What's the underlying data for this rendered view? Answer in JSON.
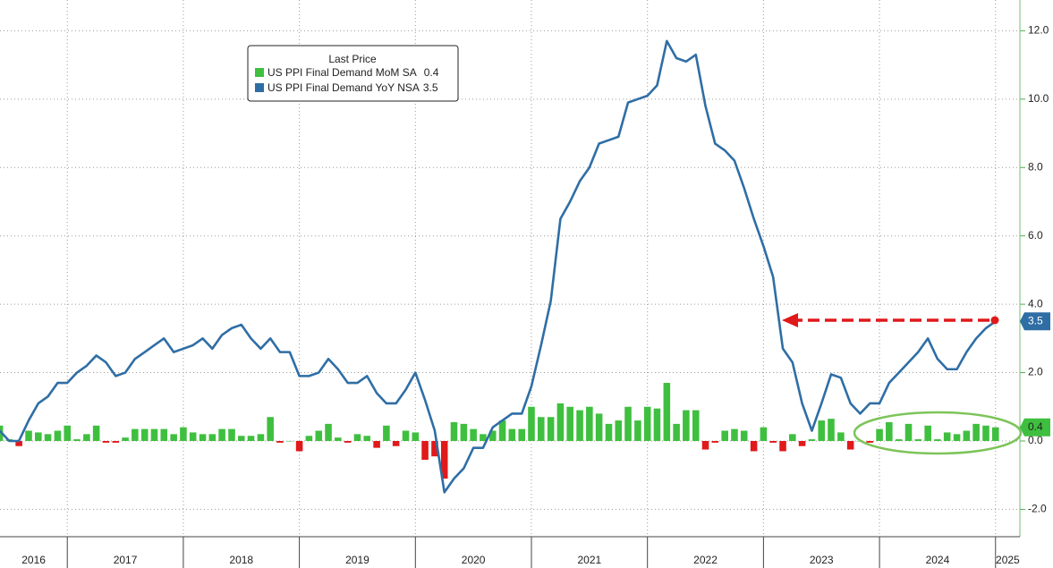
{
  "chart_data": {
    "type": "bar_line",
    "legend_title": "Last Price",
    "x": [
      2016.417,
      2016.5,
      2016.583,
      2016.667,
      2016.75,
      2016.833,
      2016.917,
      2017,
      2017.083,
      2017.167,
      2017.25,
      2017.333,
      2017.417,
      2017.5,
      2017.583,
      2017.667,
      2017.75,
      2017.833,
      2017.917,
      2018,
      2018.083,
      2018.167,
      2018.25,
      2018.333,
      2018.417,
      2018.5,
      2018.583,
      2018.667,
      2018.75,
      2018.833,
      2018.917,
      2019,
      2019.083,
      2019.167,
      2019.25,
      2019.333,
      2019.417,
      2019.5,
      2019.583,
      2019.667,
      2019.75,
      2019.833,
      2019.917,
      2020,
      2020.083,
      2020.167,
      2020.25,
      2020.333,
      2020.417,
      2020.5,
      2020.583,
      2020.667,
      2020.75,
      2020.833,
      2020.917,
      2021,
      2021.083,
      2021.167,
      2021.25,
      2021.333,
      2021.417,
      2021.5,
      2021.583,
      2021.667,
      2021.75,
      2021.833,
      2021.917,
      2022,
      2022.083,
      2022.167,
      2022.25,
      2022.333,
      2022.417,
      2022.5,
      2022.583,
      2022.667,
      2022.75,
      2022.833,
      2022.917,
      2023,
      2023.083,
      2023.167,
      2023.25,
      2023.333,
      2023.417,
      2023.5,
      2023.583,
      2023.667,
      2023.75,
      2023.833,
      2023.917,
      2024,
      2024.083,
      2024.167,
      2024.25,
      2024.333,
      2024.417,
      2024.5,
      2024.583,
      2024.667,
      2024.75,
      2024.833,
      2024.917,
      2025
    ],
    "series": [
      {
        "name": "US PPI Final Demand MoM SA",
        "kind": "bar",
        "color": "#3fbf3f",
        "negative_color": "#e0191b",
        "values": [
          0.45,
          0.05,
          -0.15,
          0.3,
          0.25,
          0.2,
          0.3,
          0.45,
          0.05,
          0.2,
          0.45,
          -0.05,
          -0.05,
          0.1,
          0.35,
          0.35,
          0.35,
          0.35,
          0.2,
          0.4,
          0.25,
          0.2,
          0.2,
          0.35,
          0.35,
          0.15,
          0.15,
          0.2,
          0.7,
          -0.05,
          0.0,
          -0.3,
          0.15,
          0.3,
          0.5,
          0.1,
          -0.05,
          0.2,
          0.15,
          -0.2,
          0.45,
          -0.15,
          0.3,
          0.25,
          -0.55,
          -0.45,
          -1.1,
          0.55,
          0.5,
          0.35,
          0.2,
          0.3,
          0.6,
          0.35,
          0.35,
          1.0,
          0.7,
          0.7,
          1.1,
          1.0,
          0.9,
          1.0,
          0.8,
          0.5,
          0.6,
          1.0,
          0.6,
          1.0,
          0.95,
          1.7,
          0.5,
          0.9,
          0.9,
          -0.25,
          -0.05,
          0.3,
          0.35,
          0.3,
          -0.3,
          0.4,
          -0.05,
          -0.3,
          0.2,
          -0.15,
          0.05,
          0.6,
          0.65,
          0.25,
          -0.25,
          0.0,
          -0.05,
          0.35,
          0.55,
          0.05,
          0.5,
          0.05,
          0.45,
          0.05,
          0.25,
          0.2,
          0.3,
          0.5,
          0.45,
          0.4
        ]
      },
      {
        "name": "US PPI Final Demand YoY NSA",
        "kind": "line",
        "color": "#2f6ea5",
        "values": [
          0.3,
          0.0,
          0.0,
          0.6,
          1.1,
          1.3,
          1.7,
          1.7,
          2.0,
          2.2,
          2.5,
          2.3,
          1.9,
          2.0,
          2.4,
          2.6,
          2.8,
          3.0,
          2.6,
          2.7,
          2.8,
          3.0,
          2.7,
          3.1,
          3.3,
          3.4,
          3.0,
          2.7,
          3.0,
          2.6,
          2.6,
          1.9,
          1.9,
          2.0,
          2.4,
          2.1,
          1.7,
          1.7,
          1.9,
          1.4,
          1.1,
          1.1,
          1.5,
          2.0,
          1.2,
          0.3,
          -1.5,
          -1.1,
          -0.8,
          -0.2,
          -0.2,
          0.4,
          0.6,
          0.8,
          0.8,
          1.6,
          2.8,
          4.1,
          6.5,
          7.0,
          7.6,
          8.0,
          8.7,
          8.8,
          8.9,
          9.9,
          10.0,
          10.1,
          10.4,
          11.7,
          11.2,
          11.1,
          11.3,
          9.8,
          8.7,
          8.5,
          8.2,
          7.4,
          6.5,
          5.7,
          4.8,
          2.7,
          2.3,
          1.1,
          0.3,
          1.1,
          1.95,
          1.85,
          1.1,
          0.8,
          1.1,
          1.1,
          1.7,
          2.0,
          2.3,
          2.6,
          3.0,
          2.4,
          2.1,
          2.1,
          2.6,
          3.0,
          3.3,
          3.5
        ]
      }
    ],
    "xlim": [
      2016.42,
      2025.21
    ],
    "xticks": [
      2016,
      2017,
      2018,
      2019,
      2020,
      2021,
      2022,
      2023,
      2024,
      2025
    ],
    "ylim": [
      -2.8,
      12.9
    ],
    "yticks": [
      {
        "value": -2,
        "label": "-2.0"
      },
      {
        "value": 0,
        "label": "0.0"
      },
      {
        "value": 2,
        "label": "2.0"
      },
      {
        "value": 4,
        "label": "4.0"
      },
      {
        "value": 6,
        "label": "6.0"
      },
      {
        "value": 8,
        "label": "8.0"
      },
      {
        "value": 10,
        "label": "10.0"
      },
      {
        "value": 12,
        "label": "12.0"
      }
    ],
    "grid": true
  }
}
